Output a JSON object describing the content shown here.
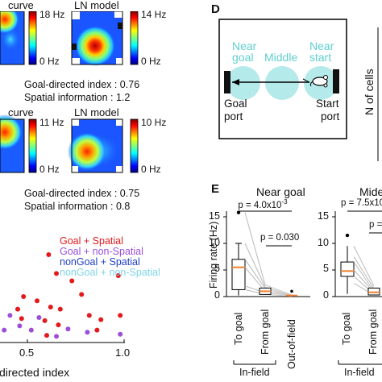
{
  "panelA": {
    "top": {
      "title_curve": "curve",
      "title_ln": "LN model",
      "cb1_max": "18 Hz",
      "cb1_min": "0 Hz",
      "cb2_max": "14 Hz",
      "cb2_min": "0 Hz",
      "goal_index": "Goal-directed index : 0.76",
      "spatial_info": "Spatial information : 1.2"
    },
    "bottom": {
      "title_curve": "curve",
      "title_ln": "LN model",
      "cb1_max": "11 Hz",
      "cb1_min": "0 Hz",
      "cb2_max": "10 Hz",
      "cb2_min": "0 Hz",
      "goal_index": "Goal-directed index : 0.75",
      "spatial_info": "Spatial information : 0.8"
    }
  },
  "scatter": {
    "chart_data": {
      "type": "scatter",
      "xlabel": "directed index",
      "x_ticks": [
        "0.5",
        "1.0"
      ],
      "legend_position": "top-right",
      "series": [
        {
          "name": "Goal + Spatial",
          "color": "#e31a1c",
          "points": [
            [
              0.61,
              0.8
            ],
            [
              0.65,
              0.62
            ],
            [
              0.73,
              0.55
            ],
            [
              0.97,
              0.6
            ],
            [
              0.78,
              0.42
            ],
            [
              0.48,
              0.4
            ],
            [
              0.55,
              0.36
            ],
            [
              0.62,
              0.3
            ],
            [
              0.67,
              0.28
            ],
            [
              0.82,
              0.22
            ],
            [
              0.47,
              0.19
            ],
            [
              0.59,
              0.17
            ],
            [
              0.66,
              0.13
            ],
            [
              0.88,
              0.18
            ],
            [
              0.98,
              0.22
            ],
            [
              0.86,
              0.08
            ],
            [
              0.6,
              0.03
            ],
            [
              0.45,
              0.28
            ]
          ]
        },
        {
          "name": "Goal + non-Spatial",
          "color": "#9b4fd8",
          "points": [
            [
              0.2,
              0.38
            ],
            [
              0.31,
              0.31
            ],
            [
              0.32,
              0.2
            ],
            [
              0.41,
              0.22
            ],
            [
              0.46,
              0.12
            ],
            [
              0.52,
              0.08
            ],
            [
              0.56,
              0.2
            ],
            [
              0.71,
              0.09
            ],
            [
              0.81,
              0.06
            ],
            [
              0.98,
              0.04
            ],
            [
              0.38,
              0.08
            ],
            [
              0.65,
              0.02
            ]
          ]
        },
        {
          "name": "nonGoal + Spatial",
          "color": "#1f3fbf",
          "points": [
            [
              0.02,
              0.45
            ],
            [
              0.03,
              0.2
            ],
            [
              0.04,
              0.32
            ]
          ]
        },
        {
          "name": "nonGoal + non-Spatial",
          "color": "#7fd6e8",
          "points": [
            [
              0.02,
              0.1
            ],
            [
              0.04,
              0.05
            ],
            [
              0.06,
              0.15
            ],
            [
              0.08,
              0.02
            ],
            [
              0.1,
              0.08
            ]
          ]
        }
      ]
    }
  },
  "panelD": {
    "letter": "D",
    "near_goal": [
      "Near",
      "goal"
    ],
    "middle": "Middle",
    "near_start": [
      "Near",
      "start"
    ],
    "goal_port": [
      "Goal",
      "port"
    ],
    "start_port": [
      "Start",
      "port"
    ],
    "ylabel": "N of cells"
  },
  "panelE": {
    "letter": "E",
    "title1": "Near goal",
    "title2": "Mide",
    "ylabel": "Firing rate (Hz)",
    "y_ticks": [
      "15",
      "10",
      "5",
      "0"
    ],
    "p1": "p = 4.0x10",
    "p1_exp": "-3",
    "p2": "p = 0.030",
    "p3": "p = 7.5x10",
    "p3_exp": "",
    "p4": "p = 0",
    "x_categories": [
      "To goal",
      "From goal",
      "Out-of-field"
    ],
    "x_categories2": [
      "To goal",
      "From goal"
    ],
    "infield": "In-field",
    "infield2": "In-field",
    "chart_data": {
      "type": "box",
      "ylabel": "Firing rate (Hz)",
      "ylim": [
        0,
        17
      ],
      "categories": [
        "To goal",
        "From goal",
        "Out-of-field"
      ],
      "box": {
        "To goal": {
          "q1": 1.3,
          "median": 5.5,
          "q3": 7.0,
          "whisker_low": 0.2,
          "whisker_high": 10.0
        }
      },
      "outliers": {
        "To goal": [
          15.8
        ]
      },
      "from_goal_values": [
        2.2,
        1.8,
        1.5,
        1.0,
        0.7,
        0.4
      ],
      "out_of_field_values": [
        0.3,
        0.2,
        0.1
      ]
    }
  }
}
